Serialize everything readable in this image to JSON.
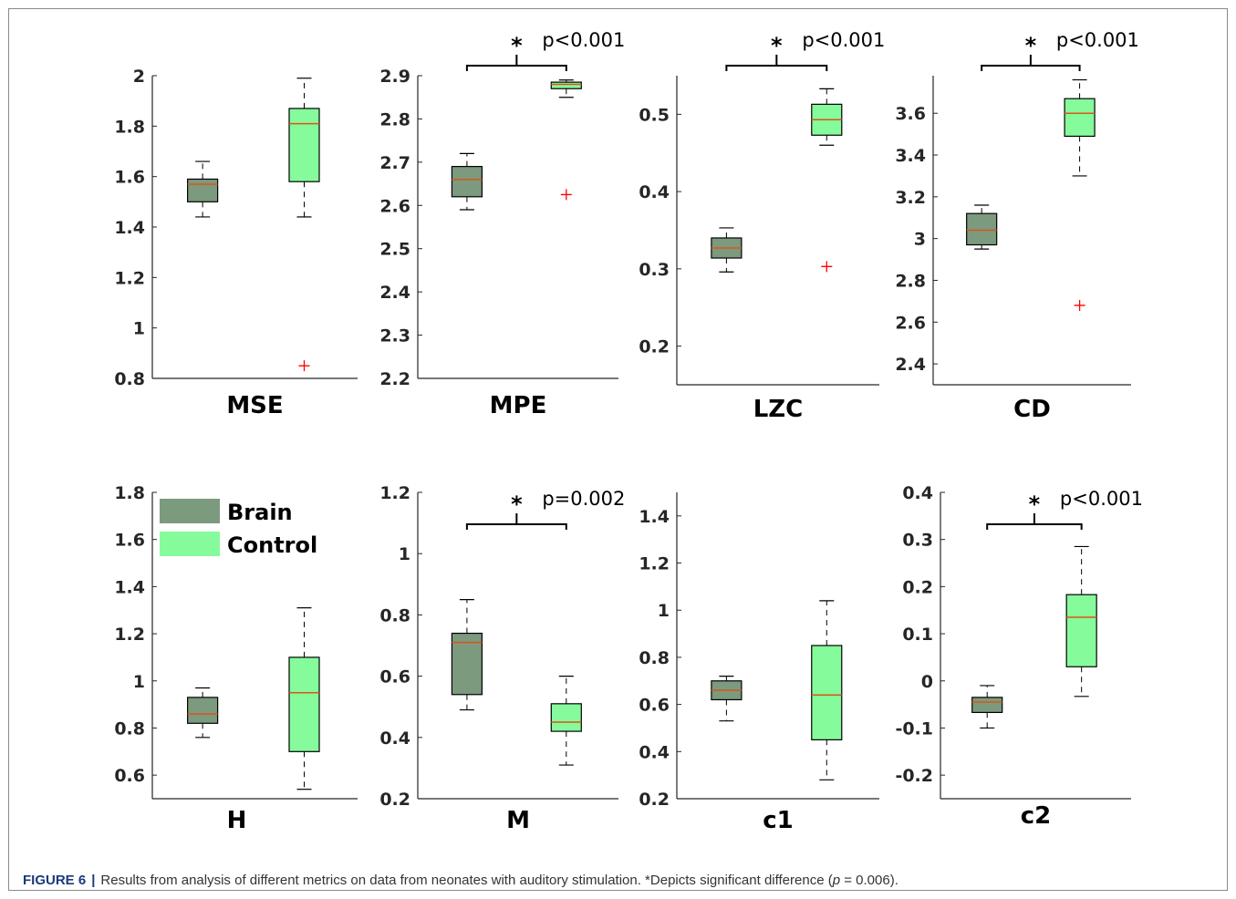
{
  "caption": {
    "label": "FIGURE 6",
    "separator": "|",
    "text": "Results from analysis of different metrics on data from neonates with auditory stimulation. *Depicts significant difference (",
    "p_symbol": "p",
    "p_value": " = 0.006)."
  },
  "colors": {
    "brain": "#7c9a7e",
    "control": "#86fb9b",
    "median": "#d9541a",
    "outlier": "#ff0000"
  },
  "legend": {
    "items": [
      "Brain",
      "Control"
    ]
  },
  "chart_data": [
    {
      "type": "box",
      "xlabel": "MSE",
      "ylim": [
        0.8,
        2.0
      ],
      "ticks": [
        0.8,
        1,
        1.2,
        1.4,
        1.6,
        1.8,
        2
      ],
      "tick_labels": [
        "0.8",
        "1",
        "1.2",
        "1.4",
        "1.6",
        "1.8",
        "2"
      ],
      "series": [
        {
          "name": "Brain",
          "whisker_low": 1.44,
          "q1": 1.5,
          "median": 1.57,
          "q3": 1.59,
          "whisker_high": 1.66,
          "outliers": []
        },
        {
          "name": "Control",
          "whisker_low": 1.44,
          "q1": 1.58,
          "median": 1.81,
          "q3": 1.87,
          "whisker_high": 1.99,
          "outliers": [
            0.85
          ]
        }
      ],
      "annotation": null
    },
    {
      "type": "box",
      "xlabel": "MPE",
      "ylim": [
        2.2,
        2.9
      ],
      "ticks": [
        2.2,
        2.3,
        2.4,
        2.5,
        2.6,
        2.7,
        2.8,
        2.9
      ],
      "tick_labels": [
        "2.2",
        "2.3",
        "2.4",
        "2.5",
        "2.6",
        "2.7",
        "2.8",
        "2.9"
      ],
      "series": [
        {
          "name": "Brain",
          "whisker_low": 2.59,
          "q1": 2.62,
          "median": 2.66,
          "q3": 2.69,
          "whisker_high": 2.72,
          "outliers": []
        },
        {
          "name": "Control",
          "whisker_low": 2.85,
          "q1": 2.87,
          "median": 2.88,
          "q3": 2.885,
          "whisker_high": 2.89,
          "outliers": [
            2.625
          ]
        }
      ],
      "annotation": {
        "star": "*",
        "text": "p<0.001"
      }
    },
    {
      "type": "box",
      "xlabel": "LZC",
      "ylim": [
        0.15,
        0.55
      ],
      "ticks": [
        0.2,
        0.3,
        0.4,
        0.5
      ],
      "tick_labels": [
        "0.2",
        "0.3",
        "0.4",
        "0.5"
      ],
      "series": [
        {
          "name": "Brain",
          "whisker_low": 0.296,
          "q1": 0.314,
          "median": 0.327,
          "q3": 0.34,
          "whisker_high": 0.353,
          "outliers": []
        },
        {
          "name": "Control",
          "whisker_low": 0.46,
          "q1": 0.473,
          "median": 0.493,
          "q3": 0.513,
          "whisker_high": 0.533,
          "outliers": [
            0.303
          ]
        }
      ],
      "annotation": {
        "star": "*",
        "text": "p<0.001"
      }
    },
    {
      "type": "box",
      "xlabel": "CD",
      "ylim": [
        2.3,
        3.78
      ],
      "ticks": [
        2.4,
        2.6,
        2.8,
        3,
        3.2,
        3.4,
        3.6
      ],
      "tick_labels": [
        "2.4",
        "2.6",
        "2.8",
        "3",
        "3.2",
        "3.4",
        "3.6"
      ],
      "series": [
        {
          "name": "Brain",
          "whisker_low": 2.95,
          "q1": 2.97,
          "median": 3.04,
          "q3": 3.12,
          "whisker_high": 3.16,
          "outliers": []
        },
        {
          "name": "Control",
          "whisker_low": 3.3,
          "q1": 3.49,
          "median": 3.6,
          "q3": 3.67,
          "whisker_high": 3.76,
          "outliers": [
            2.68
          ]
        }
      ],
      "annotation": {
        "star": "*",
        "text": "p<0.001"
      }
    },
    {
      "type": "box",
      "xlabel": "H",
      "ylim": [
        0.5,
        1.8
      ],
      "ticks": [
        0.6,
        0.8,
        1,
        1.2,
        1.4,
        1.6,
        1.8
      ],
      "tick_labels": [
        "0.6",
        "0.8",
        "1",
        "1.2",
        "1.4",
        "1.6",
        "1.8"
      ],
      "series": [
        {
          "name": "Brain",
          "whisker_low": 0.76,
          "q1": 0.82,
          "median": 0.86,
          "q3": 0.93,
          "whisker_high": 0.97,
          "outliers": []
        },
        {
          "name": "Control",
          "whisker_low": 0.54,
          "q1": 0.7,
          "median": 0.95,
          "q3": 1.1,
          "whisker_high": 1.31,
          "outliers": []
        }
      ],
      "annotation": null
    },
    {
      "type": "box",
      "xlabel": "M",
      "ylim": [
        0.2,
        1.2
      ],
      "ticks": [
        0.2,
        0.4,
        0.6,
        0.8,
        1,
        1.2
      ],
      "tick_labels": [
        "0.2",
        "0.4",
        "0.6",
        "0.8",
        "1",
        "1.2"
      ],
      "series": [
        {
          "name": "Brain",
          "whisker_low": 0.49,
          "q1": 0.54,
          "median": 0.71,
          "q3": 0.74,
          "whisker_high": 0.85,
          "outliers": []
        },
        {
          "name": "Control",
          "whisker_low": 0.31,
          "q1": 0.42,
          "median": 0.45,
          "q3": 0.51,
          "whisker_high": 0.6,
          "outliers": []
        }
      ],
      "annotation": {
        "star": "*",
        "text": "p=0.002"
      }
    },
    {
      "type": "box",
      "xlabel": "c1",
      "ylim": [
        0.2,
        1.5
      ],
      "ticks": [
        0.2,
        0.4,
        0.6,
        0.8,
        1,
        1.2,
        1.4
      ],
      "tick_labels": [
        "0.2",
        "0.4",
        "0.6",
        "0.8",
        "1",
        "1.2",
        "1.4"
      ],
      "series": [
        {
          "name": "Brain",
          "whisker_low": 0.53,
          "q1": 0.62,
          "median": 0.66,
          "q3": 0.7,
          "whisker_high": 0.72,
          "outliers": []
        },
        {
          "name": "Control",
          "whisker_low": 0.28,
          "q1": 0.45,
          "median": 0.64,
          "q3": 0.85,
          "whisker_high": 1.04,
          "outliers": []
        }
      ],
      "annotation": null
    },
    {
      "type": "box",
      "xlabel": "c2",
      "ylim": [
        -0.25,
        0.4
      ],
      "ticks": [
        -0.2,
        -0.1,
        0,
        0.1,
        0.2,
        0.3,
        0.4
      ],
      "tick_labels": [
        "-0.2",
        "-0.1",
        "0",
        "0.1",
        "0.2",
        "0.3",
        "0.4"
      ],
      "series": [
        {
          "name": "Brain",
          "whisker_low": -0.1,
          "q1": -0.067,
          "median": -0.045,
          "q3": -0.035,
          "whisker_high": -0.01,
          "outliers": []
        },
        {
          "name": "Control",
          "whisker_low": -0.033,
          "q1": 0.03,
          "median": 0.135,
          "q3": 0.183,
          "whisker_high": 0.285,
          "outliers": []
        }
      ],
      "annotation": {
        "star": "*",
        "text": "p<0.001"
      }
    }
  ]
}
